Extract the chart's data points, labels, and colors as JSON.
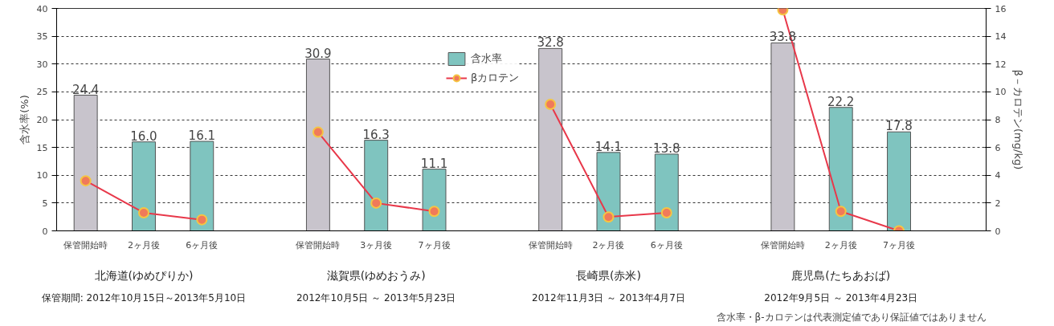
{
  "chart_data": {
    "type": "bar",
    "categories": [
      "保管開始時",
      "2ヶ月後",
      "6ヶ月後",
      null,
      "保管開始時",
      "3ヶ月後",
      "7ヶ月後",
      null,
      "保管開始時",
      "2ヶ月後",
      "6ヶ月後",
      null,
      "保管開始時",
      "2ヶ月後",
      "7ヶ月後",
      null
    ],
    "series": [
      {
        "name": "含水率",
        "color": "#7fc4bf",
        "colors": [
          "#c8c4cc",
          "#7fc4bf",
          "#7fc4bf",
          "#7fc4bf",
          "#c8c4cc",
          "#7fc4bf",
          "#7fc4bf",
          "#7fc4bf",
          "#c8c4cc",
          "#7fc4bf",
          "#7fc4bf",
          "#7fc4bf",
          "#c8c4cc",
          "#7fc4bf",
          "#7fc4bf",
          "#7fc4bf"
        ],
        "values": [
          24.4,
          16.0,
          16.1,
          null,
          30.9,
          16.3,
          11.1,
          null,
          32.8,
          14.1,
          13.8,
          null,
          33.8,
          22.2,
          17.8,
          null
        ],
        "value_labels": [
          "24.4",
          "16.0",
          "16.1",
          null,
          "30.9",
          "16.3",
          "11.1",
          null,
          "32.8",
          "14.1",
          "13.8",
          null,
          "33.8",
          "22.2",
          "17.8",
          null
        ]
      },
      {
        "name": "βカロテン",
        "type": "line",
        "axis": "y2",
        "color": "#e8384a",
        "values": [
          3.6,
          1.3,
          0.8,
          null,
          7.1,
          2.0,
          1.4,
          null,
          9.1,
          1.0,
          1.3,
          null,
          15.9,
          1.4,
          0.0,
          null
        ]
      }
    ],
    "ylabel": "含水率(%)",
    "y2label": "β－カロテン(mg/kg)",
    "ylim": [
      0,
      40
    ],
    "yticks": [
      0,
      5,
      10,
      15,
      20,
      25,
      30,
      35,
      40
    ],
    "y2lim": [
      0,
      16
    ],
    "y2ticks": [
      0,
      2,
      4,
      6,
      8,
      10,
      12,
      14,
      16
    ],
    "grid": "y",
    "legend": "top",
    "marker": "circle",
    "annotations": [
      "北海道(ゆめぴりか)",
      "滋賀県(ゆめおうみ)",
      "長崎県(赤米)",
      "鹿児島(たちあおば)",
      "保管期間: 2012年10月15日～2013年5月10日",
      "2012年10月5日 ～ 2013年5月23日",
      "2012年11月3日 ～ 2013年4月7日",
      "2012年9月5日 ～ 2013年4月23日",
      "含水率・β-カロテンは代表測定値であり保証値ではありません"
    ]
  }
}
